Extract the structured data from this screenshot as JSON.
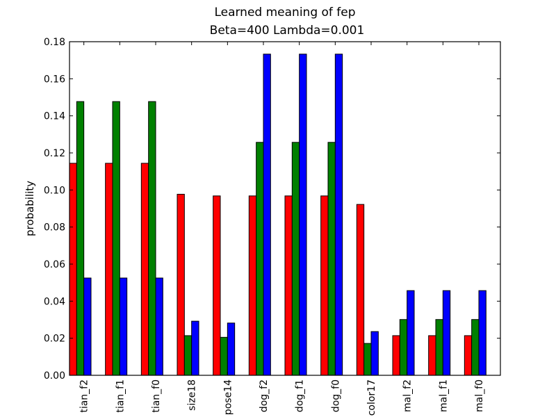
{
  "chart_data": {
    "type": "bar",
    "title": "Learned meaning of fep",
    "subtitle": "Beta=400 Lambda=0.001",
    "xlabel": "",
    "ylabel": "probability",
    "ylim": [
      0,
      0.18
    ],
    "yticks": [
      "0.00",
      "0.02",
      "0.04",
      "0.06",
      "0.08",
      "0.10",
      "0.12",
      "0.14",
      "0.16",
      "0.18"
    ],
    "grid": false,
    "legend": "none",
    "categories": [
      "tian_f2",
      "tian_f1",
      "tian_f0",
      "size18",
      "pose14",
      "dog_f2",
      "dog_f1",
      "dog_f0",
      "color17",
      "mal_f2",
      "mal_f1",
      "mal_f0"
    ],
    "series": [
      {
        "color": "#ff0000",
        "values": [
          0.1144,
          0.1144,
          0.1144,
          0.0977,
          0.0968,
          0.0968,
          0.0968,
          0.0968,
          0.0922,
          0.0214,
          0.0214,
          0.0214
        ]
      },
      {
        "color": "#008000",
        "values": [
          0.1477,
          0.1477,
          0.1477,
          0.0214,
          0.0205,
          0.1257,
          0.1257,
          0.1257,
          0.0172,
          0.0301,
          0.0301,
          0.0301
        ]
      },
      {
        "color": "#0000ff",
        "values": [
          0.0525,
          0.0525,
          0.0525,
          0.0292,
          0.0282,
          0.1733,
          0.1733,
          0.1733,
          0.0236,
          0.0457,
          0.0457,
          0.0457
        ]
      }
    ]
  }
}
